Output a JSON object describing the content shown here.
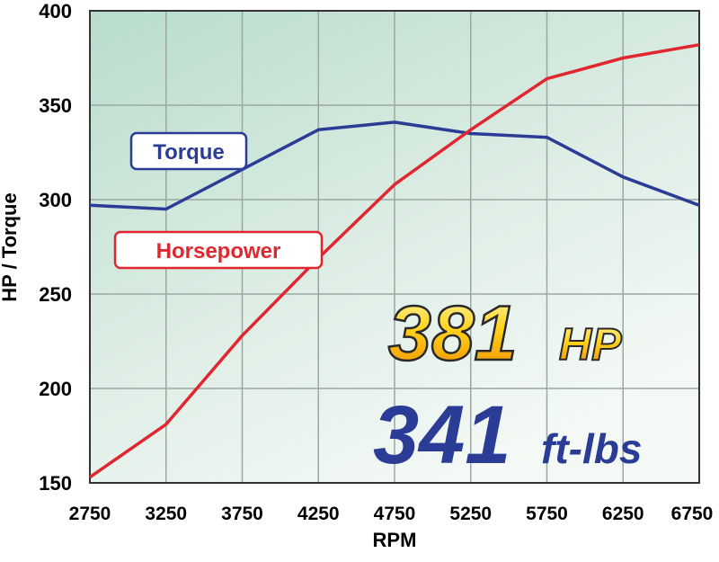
{
  "chart_data": {
    "type": "line",
    "x_label": "RPM",
    "y_label": "HP / Torque",
    "x": [
      2750,
      3250,
      3750,
      4250,
      4750,
      5250,
      5750,
      6250,
      6750
    ],
    "xlim": [
      2750,
      6750
    ],
    "xticks": [
      2750,
      3250,
      3750,
      4250,
      4750,
      5250,
      5750,
      6250,
      6750
    ],
    "ylim": [
      150,
      400
    ],
    "yticks": [
      150,
      200,
      250,
      300,
      350,
      400
    ],
    "grid": true,
    "series": [
      {
        "name": "Torque",
        "color": "#2b3c96",
        "values": [
          297,
          295,
          316,
          337,
          341,
          335,
          333,
          312,
          297
        ]
      },
      {
        "name": "Horsepower",
        "color": "#e0262e",
        "values": [
          153,
          181,
          228,
          269,
          308,
          337,
          364,
          375,
          382
        ]
      }
    ],
    "annotations": [
      {
        "value": "381",
        "unit": "HP"
      },
      {
        "value": "341",
        "unit": "ft-lbs"
      }
    ]
  }
}
